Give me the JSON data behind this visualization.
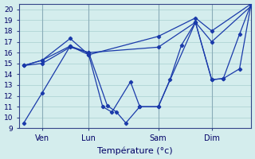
{
  "background_color": "#d4eded",
  "grid_color": "#b0d4d4",
  "vline_color": "#8aacb8",
  "line_color": "#1a3aaa",
  "xlabel": "Température (°c)",
  "xlim": [
    0,
    100
  ],
  "ylim": [
    9,
    20.5
  ],
  "yticks": [
    9,
    10,
    11,
    12,
    13,
    14,
    15,
    16,
    17,
    18,
    19,
    20
  ],
  "xtick_positions": [
    10,
    30,
    60,
    83
  ],
  "xtick_labels": [
    "Ven",
    "Lun",
    "Sam",
    "Dim"
  ],
  "vline_positions": [
    10,
    30,
    60,
    83
  ],
  "lines": [
    {
      "x": [
        2,
        10,
        22,
        30,
        38,
        42,
        46,
        52,
        60,
        65,
        70,
        76,
        83,
        88,
        95,
        100
      ],
      "y": [
        9.5,
        12.3,
        16.6,
        16.0,
        11.1,
        10.5,
        9.5,
        11.0,
        11.0,
        13.5,
        16.7,
        18.8,
        13.5,
        13.6,
        17.7,
        20.5
      ]
    },
    {
      "x": [
        2,
        10,
        22,
        30,
        60,
        76,
        83,
        100
      ],
      "y": [
        14.8,
        15.0,
        16.5,
        16.0,
        16.5,
        18.8,
        17.0,
        20.3
      ]
    },
    {
      "x": [
        2,
        10,
        22,
        30,
        60,
        76,
        83,
        100
      ],
      "y": [
        14.8,
        15.3,
        17.3,
        15.8,
        17.5,
        19.2,
        18.0,
        20.5
      ]
    },
    {
      "x": [
        2,
        10,
        22,
        30,
        36,
        40,
        48,
        52,
        60,
        76,
        83,
        88,
        95,
        100
      ],
      "y": [
        14.8,
        15.3,
        16.6,
        15.8,
        11.0,
        10.5,
        13.3,
        11.0,
        11.0,
        18.8,
        13.5,
        13.6,
        14.5,
        20.5
      ]
    }
  ]
}
